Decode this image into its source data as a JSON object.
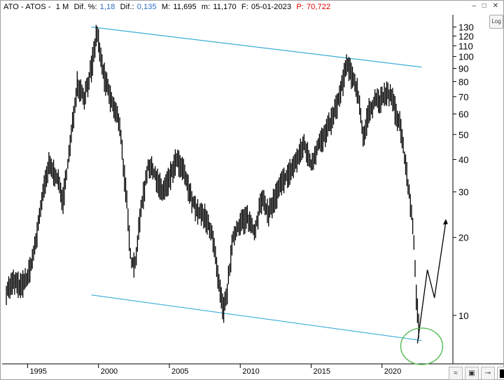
{
  "header": {
    "symbol": "ATO - ATOS -",
    "period": "1 M",
    "dif_pct_label": "Dif. %:",
    "dif_pct_value": "1,18",
    "dif_label": "Dif.:",
    "dif_value": "0,135",
    "max_label": "M:",
    "max_value": "11,695",
    "min_label": "m:",
    "min_value": "11,170",
    "date_label": "F:",
    "date_value": "05-01-2023",
    "price_label": "P:",
    "price_value": "70,722"
  },
  "window_controls": "– □ ✕",
  "log_button": "Log",
  "colors": {
    "channel": "#3aaed8",
    "price": "#000000",
    "circle": "#55bb55",
    "accent_value": "#2b6cc4",
    "price_value": "#e00000"
  },
  "toolbar_icons": [
    "wave-icon",
    "save-icon",
    "pin-icon",
    "fill-icon"
  ],
  "chart_data": {
    "type": "line",
    "y_scale": "log",
    "ylim": [
      6.5,
      145
    ],
    "xlim": [
      1993.2,
      2025.0
    ],
    "y_ticks": [
      10,
      20,
      30,
      40,
      50,
      60,
      70,
      80,
      90,
      100,
      110,
      120,
      130
    ],
    "x_ticks": [
      1995,
      2000,
      2005,
      2010,
      2015,
      2020
    ],
    "series": [
      {
        "x": [
          1993.5,
          1994.0,
          1994.5,
          1995.0,
          1995.5,
          1996.0,
          1996.5,
          1997.0,
          1997.5,
          1998.0,
          1998.5,
          1999.0,
          1999.5,
          1999.9,
          2000.2,
          2000.5,
          2001.0,
          2001.5,
          2002.0,
          2002.3,
          2002.6,
          2003.0,
          2003.5,
          2004.0,
          2004.5,
          2005.0,
          2005.5,
          2006.0,
          2006.5,
          2007.0,
          2007.5,
          2008.0,
          2008.5,
          2008.8,
          2009.0,
          2009.5,
          2010.0,
          2010.5,
          2011.0,
          2011.5,
          2012.0,
          2012.5,
          2013.0,
          2013.5,
          2014.0,
          2014.5,
          2015.0,
          2015.5,
          2016.0,
          2016.5,
          2017.0,
          2017.5,
          2018.0,
          2018.3,
          2018.7,
          2019.0,
          2019.5,
          2020.0,
          2020.3,
          2020.7,
          2021.0,
          2021.3,
          2021.6,
          2021.9,
          2022.2,
          2022.4,
          2022.6
        ],
        "values": [
          12.5,
          13.5,
          13,
          14,
          18,
          28,
          38,
          35,
          28,
          45,
          80,
          70,
          90,
          125,
          95,
          80,
          65,
          55,
          27,
          16,
          16,
          26,
          38,
          35,
          30,
          34,
          40,
          36,
          29,
          25,
          24,
          21,
          13,
          10.5,
          11.5,
          20,
          23,
          24,
          21,
          28,
          25,
          29,
          33,
          36,
          40,
          46,
          38,
          46,
          50,
          58,
          70,
          93,
          82,
          73,
          48,
          60,
          68,
          68,
          72,
          70,
          60,
          55,
          40,
          30,
          22,
          12,
          9
        ]
      }
    ],
    "channel_lines": [
      {
        "x": [
          1999.5,
          2022.8
        ],
        "y": [
          130,
          91
        ]
      },
      {
        "x": [
          1999.5,
          2022.8
        ],
        "y": [
          12.0,
          8.0
        ]
      }
    ],
    "projection": {
      "x": [
        2022.5,
        2023.2,
        2023.7,
        2024.5
      ],
      "y": [
        7.8,
        15,
        11.7,
        23
      ]
    },
    "highlight_circle": {
      "x": 2022.8,
      "y": 7.6
    }
  }
}
